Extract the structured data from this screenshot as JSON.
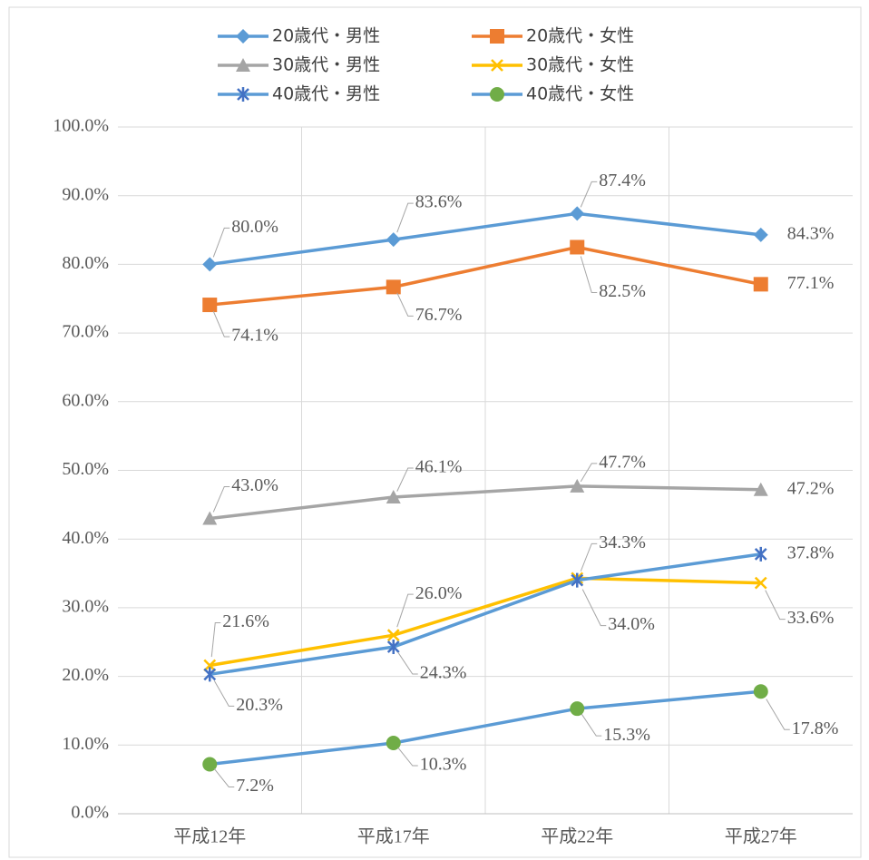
{
  "chart_data": {
    "type": "line",
    "categories": [
      "平成12年",
      "平成17年",
      "平成22年",
      "平成27年"
    ],
    "ylim": [
      0,
      100
    ],
    "yticks": [
      {
        "value": 0,
        "label": "0.0%"
      },
      {
        "value": 10,
        "label": "10.0%"
      },
      {
        "value": 20,
        "label": "20.0%"
      },
      {
        "value": 30,
        "label": "30.0%"
      },
      {
        "value": 40,
        "label": "40.0%"
      },
      {
        "value": 50,
        "label": "50.0%"
      },
      {
        "value": 60,
        "label": "60.0%"
      },
      {
        "value": 70,
        "label": "70.0%"
      },
      {
        "value": 80,
        "label": "80.0%"
      },
      {
        "value": 90,
        "label": "90.0%"
      },
      {
        "value": 100,
        "label": "100.0%"
      }
    ],
    "grid": true,
    "legend": "top",
    "series": [
      {
        "name": "20歳代・男性",
        "color": "#5b9bd5",
        "marker": "diamond",
        "marker_color": "#5b9bd5",
        "values": [
          80.0,
          83.6,
          87.4,
          84.3
        ],
        "value_labels": [
          "80.0%",
          "83.6%",
          "87.4%",
          "84.3%"
        ]
      },
      {
        "name": "20歳代・女性",
        "color": "#ed7d31",
        "marker": "square",
        "marker_color": "#ed7d31",
        "values": [
          74.1,
          76.7,
          82.5,
          77.1
        ],
        "value_labels": [
          "74.1%",
          "76.7%",
          "82.5%",
          "77.1%"
        ]
      },
      {
        "name": "30歳代・男性",
        "color": "#a5a5a5",
        "marker": "triangle",
        "marker_color": "#a5a5a5",
        "values": [
          43.0,
          46.1,
          47.7,
          47.2
        ],
        "value_labels": [
          "43.0%",
          "46.1%",
          "47.7%",
          "47.2%"
        ]
      },
      {
        "name": "30歳代・女性",
        "color": "#ffc000",
        "marker": "x",
        "marker_color": "#ffc000",
        "values": [
          21.6,
          26.0,
          34.3,
          33.6
        ],
        "value_labels": [
          "21.6%",
          "26.0%",
          "34.3%",
          "33.6%"
        ]
      },
      {
        "name": "40歳代・男性",
        "color": "#5b9bd5",
        "marker": "asterisk",
        "marker_color": "#4472c4",
        "values": [
          20.3,
          24.3,
          34.0,
          37.8
        ],
        "value_labels": [
          "20.3%",
          "24.3%",
          "34.0%",
          "37.8%"
        ]
      },
      {
        "name": "40歳代・女性",
        "color": "#5b9bd5",
        "marker": "circle",
        "marker_color": "#70ad47",
        "values": [
          7.2,
          10.3,
          15.3,
          17.8
        ],
        "value_labels": [
          "7.2%",
          "10.3%",
          "15.3%",
          "17.8%"
        ]
      }
    ]
  }
}
